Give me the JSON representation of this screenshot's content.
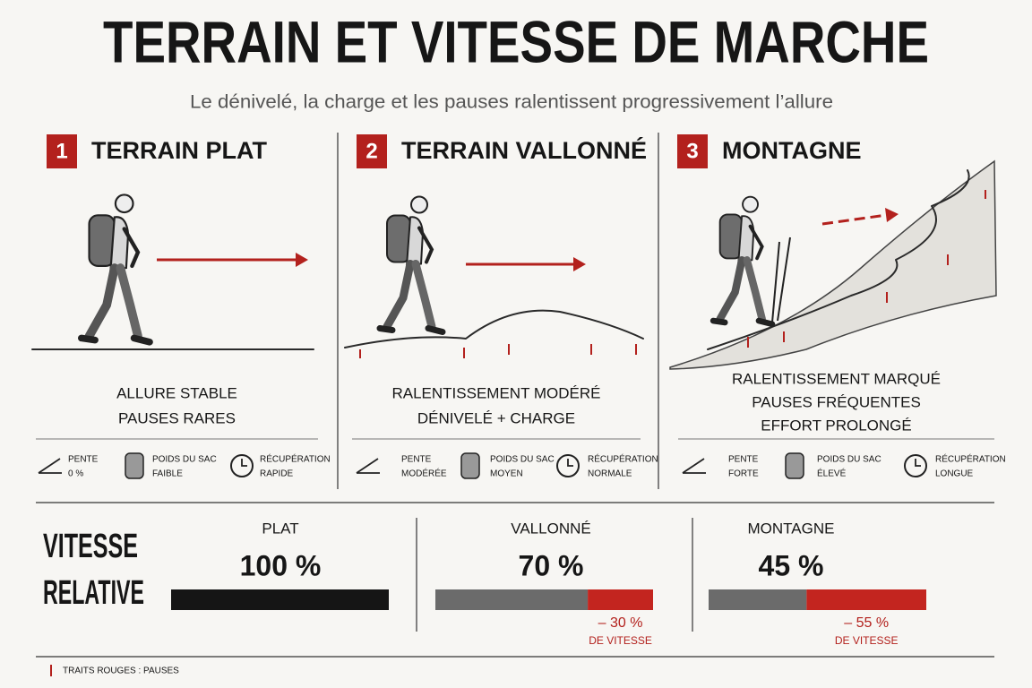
{
  "header": {
    "title": "TERRAIN ET VITESSE DE MARCHE",
    "subtitle": "Le dénivelé, la charge et les pauses ralentissent progressivement l’allure"
  },
  "panels": [
    {
      "number": "1",
      "title": "TERRAIN PLAT",
      "caption": [
        "ALLURE STABLE",
        "PAUSES RARES"
      ],
      "stats": [
        {
          "label": "PENTE",
          "value": "0 %"
        },
        {
          "label": "POIDS DU SAC",
          "value": "FAIBLE"
        },
        {
          "label": "RÉCUPÉRATION",
          "value": "RAPIDE"
        }
      ]
    },
    {
      "number": "2",
      "title": "TERRAIN VALLONNÉ",
      "caption": [
        "RALENTISSEMENT MODÉRÉ",
        "DÉNIVELÉ + CHARGE"
      ],
      "stats": [
        {
          "label": "PENTE",
          "value": "MODÉRÉE"
        },
        {
          "label": "POIDS DU SAC",
          "value": "MOYEN"
        },
        {
          "label": "RÉCUPÉRATION",
          "value": "NORMALE"
        }
      ]
    },
    {
      "number": "3",
      "title": "MONTAGNE",
      "caption": [
        "RALENTISSEMENT MARQUÉ",
        "PAUSES FRÉQUENTES",
        "EFFORT PROLONGÉ"
      ],
      "stats": [
        {
          "label": "PENTE",
          "value": "FORTE"
        },
        {
          "label": "POIDS DU SAC",
          "value": "ÉLEVÉ"
        },
        {
          "label": "RÉCUPÉRATION",
          "value": "LONGUE"
        }
      ]
    }
  ],
  "speed": {
    "title": [
      "VITESSE",
      "RELATIVE"
    ],
    "items": [
      {
        "name": "PLAT",
        "value": 100,
        "value_label": "100 %"
      },
      {
        "name": "VALLONNÉ",
        "value": 70,
        "value_label": "70 %",
        "loss": -30,
        "loss_label": "– 30 %",
        "loss_note": "DE VITESSE"
      },
      {
        "name": "MONTAGNE",
        "value": 45,
        "value_label": "45 %",
        "loss": -55,
        "loss_label": "– 55 %",
        "loss_note": "DE VITESSE"
      }
    ]
  },
  "legend": "TRAITS ROUGES : PAUSES"
}
